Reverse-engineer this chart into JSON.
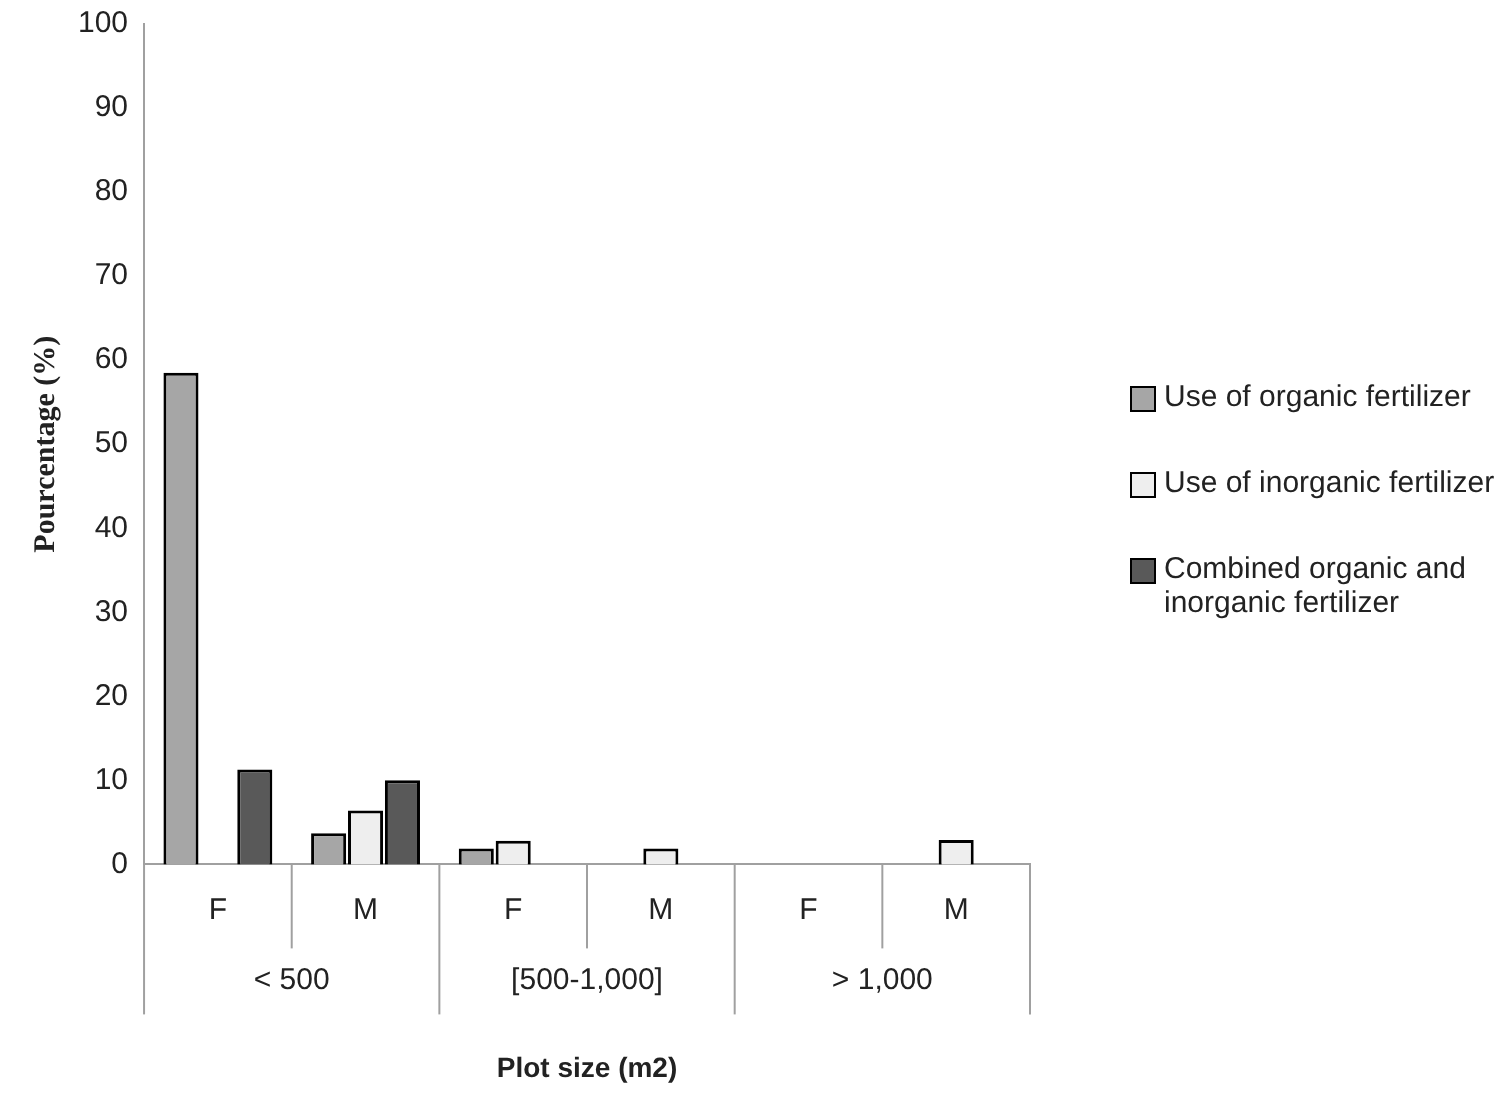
{
  "chart_data": {
    "type": "bar",
    "xlabel": "Plot size (m2)",
    "ylabel": "Pourcentage (%)",
    "categories": [
      "F",
      "M",
      "F",
      "M",
      "F",
      "M"
    ],
    "annotations": [
      "< 500",
      "[500-1,000]",
      "> 1,000"
    ],
    "series": [
      {
        "name": "Use of organic fertilizer",
        "color": "#a6a6a6",
        "values": [
          58.5,
          3.7,
          1.9,
          null,
          null,
          null
        ]
      },
      {
        "name": "Use of inorganic fertilizer",
        "color": "#eeeeee",
        "values": [
          null,
          6.4,
          2.8,
          1.9,
          null,
          2.9
        ]
      },
      {
        "name": "Combined organic and inorganic fertilizer",
        "color": "#595959",
        "values": [
          11.3,
          10,
          null,
          null,
          null,
          null
        ]
      }
    ],
    "ylim": [
      0,
      100
    ],
    "yticks": [
      0,
      10,
      20,
      30,
      40,
      50,
      60,
      70,
      80,
      90,
      100
    ],
    "grid": false,
    "legend": "right"
  }
}
